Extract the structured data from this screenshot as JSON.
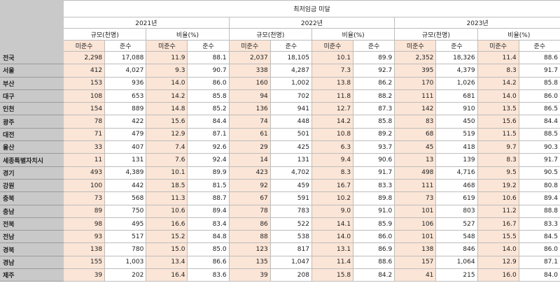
{
  "table": {
    "title": "최저임금 미달",
    "years": [
      "2021년",
      "2022년",
      "2023년"
    ],
    "measures": [
      "규모(천명)",
      "비율(%)"
    ],
    "status": [
      "미준수",
      "준수"
    ],
    "rows": [
      [
        "전국",
        "2,298",
        "17,088",
        "11.9",
        "88.1",
        "2,037",
        "18,105",
        "10.1",
        "89.9",
        "2,352",
        "18,326",
        "11.4",
        "88.6"
      ],
      [
        "서울",
        "412",
        "4,027",
        "9.3",
        "90.7",
        "338",
        "4,287",
        "7.3",
        "92.7",
        "395",
        "4,379",
        "8.3",
        "91.7"
      ],
      [
        "부산",
        "153",
        "936",
        "14.0",
        "86.0",
        "160",
        "1,002",
        "13.8",
        "86.2",
        "170",
        "1,026",
        "14.2",
        "85.8"
      ],
      [
        "대구",
        "108",
        "653",
        "14.2",
        "85.8",
        "94",
        "702",
        "11.8",
        "88.2",
        "111",
        "681",
        "14.0",
        "86.0"
      ],
      [
        "인천",
        "154",
        "889",
        "14.8",
        "85.2",
        "136",
        "941",
        "12.7",
        "87.3",
        "142",
        "910",
        "13.5",
        "86.5"
      ],
      [
        "광주",
        "78",
        "422",
        "15.6",
        "84.4",
        "74",
        "448",
        "14.2",
        "85.8",
        "83",
        "450",
        "15.6",
        "84.4"
      ],
      [
        "대전",
        "71",
        "479",
        "12.9",
        "87.1",
        "61",
        "501",
        "10.8",
        "89.2",
        "68",
        "519",
        "11.5",
        "88.5"
      ],
      [
        "울산",
        "33",
        "407",
        "7.4",
        "92.6",
        "29",
        "425",
        "6.3",
        "93.7",
        "45",
        "418",
        "9.7",
        "90.3"
      ],
      [
        "세종특별자치시",
        "11",
        "131",
        "7.6",
        "92.4",
        "14",
        "131",
        "9.4",
        "90.6",
        "13",
        "139",
        "8.3",
        "91.7"
      ],
      [
        "경기",
        "493",
        "4,389",
        "10.1",
        "89.9",
        "423",
        "4,702",
        "8.3",
        "91.7",
        "498",
        "4,716",
        "9.5",
        "90.5"
      ],
      [
        "강원",
        "100",
        "442",
        "18.5",
        "81.5",
        "92",
        "459",
        "16.7",
        "83.3",
        "111",
        "468",
        "19.2",
        "80.8"
      ],
      [
        "충북",
        "73",
        "568",
        "11.3",
        "88.7",
        "67",
        "591",
        "10.2",
        "89.8",
        "73",
        "619",
        "10.6",
        "89.4"
      ],
      [
        "충남",
        "89",
        "750",
        "10.6",
        "89.4",
        "78",
        "783",
        "9.0",
        "91.0",
        "101",
        "803",
        "11.2",
        "88.8"
      ],
      [
        "전북",
        "98",
        "495",
        "16.6",
        "83.4",
        "86",
        "522",
        "14.1",
        "85.9",
        "106",
        "527",
        "16.7",
        "83.3"
      ],
      [
        "전남",
        "93",
        "517",
        "15.2",
        "84.8",
        "88",
        "538",
        "14.0",
        "86.0",
        "101",
        "548",
        "15.5",
        "84.5"
      ],
      [
        "경북",
        "138",
        "780",
        "15.0",
        "85.0",
        "123",
        "817",
        "13.1",
        "86.9",
        "138",
        "846",
        "14.0",
        "86.0"
      ],
      [
        "경남",
        "155",
        "1,003",
        "13.4",
        "86.6",
        "135",
        "1,047",
        "11.4",
        "88.6",
        "157",
        "1,064",
        "12.9",
        "87.1"
      ],
      [
        "제주",
        "39",
        "202",
        "16.4",
        "83.6",
        "39",
        "208",
        "15.8",
        "84.2",
        "41",
        "215",
        "16.0",
        "84.0"
      ]
    ]
  }
}
